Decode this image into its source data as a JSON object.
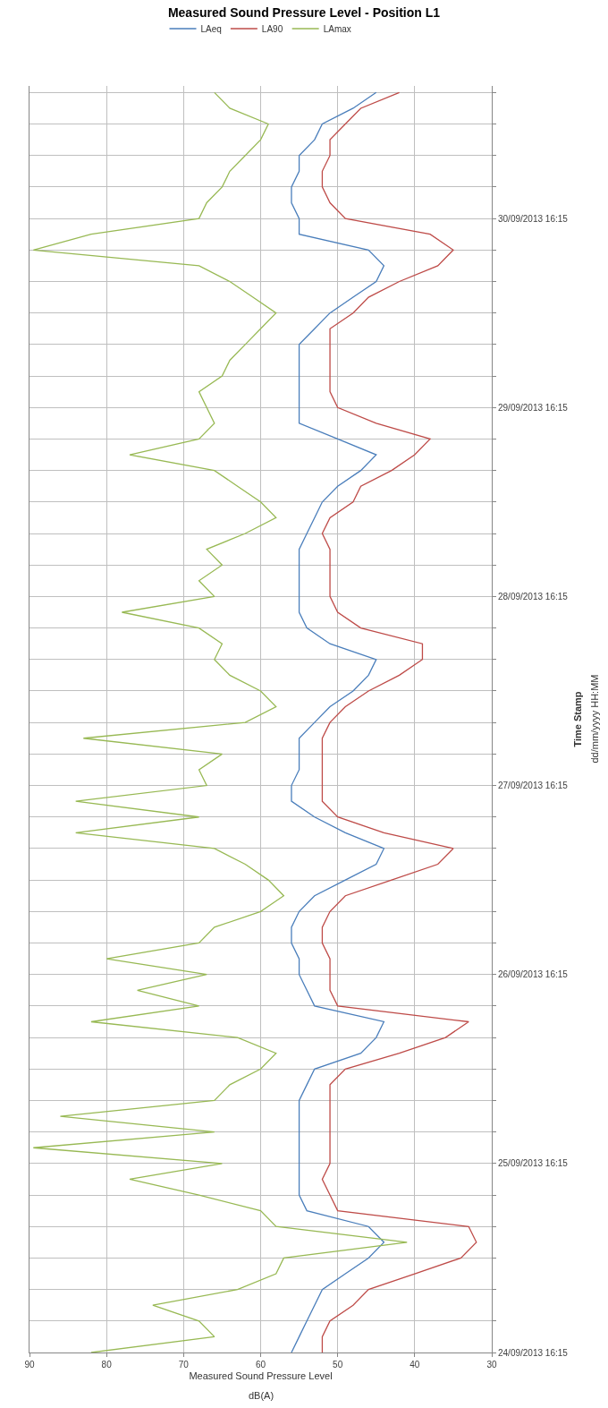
{
  "chart_data": {
    "type": "line",
    "title": "Measured Sound Pressure Level - Position L1",
    "xlabel": "Measured Sound Pressure Level",
    "ylabel": "Time Stamp",
    "annotations": [
      "dd/mm/yyyy HH:MM",
      "dB(A)"
    ],
    "x": [
      "2013-09-24T16:15",
      "2013-09-24T18:15",
      "2013-09-24T20:15",
      "2013-09-24T22:15",
      "2013-09-25T00:15",
      "2013-09-25T02:15",
      "2013-09-25T04:15",
      "2013-09-25T06:15",
      "2013-09-25T08:15",
      "2013-09-25T10:15",
      "2013-09-25T12:15",
      "2013-09-25T14:15",
      "2013-09-25T16:15",
      "2013-09-25T18:15",
      "2013-09-25T20:15",
      "2013-09-25T22:15",
      "2013-09-26T00:15",
      "2013-09-26T02:15",
      "2013-09-26T04:15",
      "2013-09-26T06:15",
      "2013-09-26T08:15",
      "2013-09-26T10:15",
      "2013-09-26T12:15",
      "2013-09-26T14:15",
      "2013-09-26T16:15",
      "2013-09-26T18:15",
      "2013-09-26T20:15",
      "2013-09-26T22:15",
      "2013-09-27T00:15",
      "2013-09-27T02:15",
      "2013-09-27T04:15",
      "2013-09-27T06:15",
      "2013-09-27T08:15",
      "2013-09-27T10:15",
      "2013-09-27T12:15",
      "2013-09-27T14:15",
      "2013-09-27T16:15",
      "2013-09-27T18:15",
      "2013-09-27T20:15",
      "2013-09-27T22:15",
      "2013-09-28T00:15",
      "2013-09-28T02:15",
      "2013-09-28T04:15",
      "2013-09-28T06:15",
      "2013-09-28T08:15",
      "2013-09-28T10:15",
      "2013-09-28T12:15",
      "2013-09-28T14:15",
      "2013-09-28T16:15",
      "2013-09-28T18:15",
      "2013-09-28T20:15",
      "2013-09-28T22:15",
      "2013-09-29T00:15",
      "2013-09-29T02:15",
      "2013-09-29T04:15",
      "2013-09-29T06:15",
      "2013-09-29T08:15",
      "2013-09-29T10:15",
      "2013-09-29T12:15",
      "2013-09-29T14:15",
      "2013-09-29T16:15",
      "2013-09-29T18:15",
      "2013-09-29T20:15",
      "2013-09-29T22:15",
      "2013-09-30T00:15",
      "2013-09-30T02:15",
      "2013-09-30T04:15",
      "2013-09-30T06:15",
      "2013-09-30T08:15",
      "2013-09-30T10:15",
      "2013-09-30T12:15",
      "2013-09-30T14:15",
      "2013-09-30T16:15",
      "2013-09-30T18:15",
      "2013-09-30T20:15",
      "2013-09-30T22:15",
      "2013-10-01T00:15",
      "2013-10-01T02:15",
      "2013-10-01T04:15",
      "2013-10-01T06:15",
      "2013-10-01T08:15"
    ],
    "series": [
      {
        "name": "LAeq",
        "color": "#4a7ebb",
        "values": [
          56,
          55,
          54,
          53,
          52,
          49,
          46,
          44,
          46,
          54,
          55,
          55,
          55,
          55,
          55,
          55,
          55,
          54,
          53,
          47,
          45,
          44,
          53,
          54,
          55,
          55,
          56,
          56,
          55,
          53,
          49,
          45,
          44,
          49,
          53,
          56,
          56,
          55,
          55,
          55,
          53,
          51,
          48,
          46,
          45,
          51,
          54,
          55,
          55,
          55,
          55,
          55,
          54,
          53,
          52,
          50,
          47,
          45,
          50,
          55,
          55,
          55,
          55,
          55,
          55,
          53,
          51,
          48,
          45,
          44,
          46,
          55,
          55,
          56,
          56,
          55,
          55,
          53,
          52,
          48,
          45
        ]
      },
      {
        "name": "LA90",
        "color": "#be4b48",
        "values": [
          52,
          52,
          51,
          48,
          46,
          40,
          34,
          32,
          33,
          50,
          51,
          52,
          51,
          51,
          51,
          51,
          51,
          51,
          49,
          42,
          36,
          33,
          50,
          51,
          51,
          51,
          52,
          52,
          51,
          49,
          43,
          37,
          35,
          44,
          50,
          52,
          52,
          52,
          52,
          52,
          51,
          49,
          46,
          42,
          39,
          39,
          47,
          50,
          51,
          51,
          51,
          51,
          52,
          51,
          48,
          47,
          43,
          40,
          38,
          45,
          50,
          51,
          51,
          51,
          51,
          51,
          48,
          46,
          42,
          37,
          35,
          38,
          49,
          51,
          52,
          52,
          51,
          51,
          49,
          47,
          42
        ]
      },
      {
        "name": "LAmax",
        "color": "#98b954",
        "values": [
          82,
          66,
          68,
          74,
          63,
          58,
          57,
          41,
          58,
          60,
          68,
          77,
          65,
          89.5,
          66,
          86,
          66,
          64,
          60,
          58,
          63,
          82,
          68,
          76,
          67,
          80,
          68,
          66,
          60,
          57,
          59,
          62,
          66,
          84,
          68,
          84,
          67,
          68,
          65,
          83,
          62,
          58,
          60,
          64,
          66,
          65,
          68,
          78,
          66,
          68,
          65,
          67,
          62,
          58,
          60,
          63,
          66,
          77,
          68,
          66,
          67,
          68,
          65,
          64,
          62,
          60,
          58,
          61,
          64,
          68,
          89.5,
          82,
          68,
          67,
          65,
          64,
          62,
          60,
          59,
          64,
          66
        ]
      }
    ],
    "orientation": "horizontal",
    "xlim": [
      90,
      30
    ],
    "xticks": [
      90,
      80,
      70,
      60,
      50,
      40,
      30
    ],
    "ylim": [
      "2013-09-24T16:15",
      "2013-10-01T09:05"
    ],
    "yticks": [
      {
        "value": "2013-09-24T16:15",
        "label": "24/09/2013 16:15"
      },
      {
        "value": "2013-09-24T20:15",
        "label": null
      },
      {
        "value": "2013-09-25T00:15",
        "label": null
      },
      {
        "value": "2013-09-25T04:15",
        "label": null
      },
      {
        "value": "2013-09-25T08:15",
        "label": null
      },
      {
        "value": "2013-09-25T12:15",
        "label": null
      },
      {
        "value": "2013-09-25T16:15",
        "label": "25/09/2013 16:15"
      },
      {
        "value": "2013-09-25T20:15",
        "label": null
      },
      {
        "value": "2013-09-26T00:15",
        "label": null
      },
      {
        "value": "2013-09-26T04:15",
        "label": null
      },
      {
        "value": "2013-09-26T08:15",
        "label": null
      },
      {
        "value": "2013-09-26T12:15",
        "label": null
      },
      {
        "value": "2013-09-26T16:15",
        "label": "26/09/2013 16:15"
      },
      {
        "value": "2013-09-26T20:15",
        "label": null
      },
      {
        "value": "2013-09-27T00:15",
        "label": null
      },
      {
        "value": "2013-09-27T04:15",
        "label": null
      },
      {
        "value": "2013-09-27T08:15",
        "label": null
      },
      {
        "value": "2013-09-27T12:15",
        "label": null
      },
      {
        "value": "2013-09-27T16:15",
        "label": "27/09/2013 16:15"
      },
      {
        "value": "2013-09-27T20:15",
        "label": null
      },
      {
        "value": "2013-09-28T00:15",
        "label": null
      },
      {
        "value": "2013-09-28T04:15",
        "label": null
      },
      {
        "value": "2013-09-28T08:15",
        "label": null
      },
      {
        "value": "2013-09-28T12:15",
        "label": null
      },
      {
        "value": "2013-09-28T16:15",
        "label": "28/09/2013 16:15"
      },
      {
        "value": "2013-09-28T20:15",
        "label": null
      },
      {
        "value": "2013-09-29T00:15",
        "label": null
      },
      {
        "value": "2013-09-29T04:15",
        "label": null
      },
      {
        "value": "2013-09-29T08:15",
        "label": null
      },
      {
        "value": "2013-09-29T12:15",
        "label": null
      },
      {
        "value": "2013-09-29T16:15",
        "label": "29/09/2013 16:15"
      },
      {
        "value": "2013-09-29T20:15",
        "label": null
      },
      {
        "value": "2013-09-30T00:15",
        "label": null
      },
      {
        "value": "2013-09-30T04:15",
        "label": null
      },
      {
        "value": "2013-09-30T08:15",
        "label": null
      },
      {
        "value": "2013-09-30T12:15",
        "label": null
      },
      {
        "value": "2013-09-30T16:15",
        "label": "30/09/2013 16:15"
      },
      {
        "value": "2013-09-30T20:15",
        "label": null
      },
      {
        "value": "2013-10-01T00:15",
        "label": null
      },
      {
        "value": "2013-10-01T04:15",
        "label": null
      },
      {
        "value": "2013-10-01T08:15",
        "label": null
      }
    ],
    "grid": true,
    "legend": "top",
    "marker": "none",
    "line_style": "solid"
  }
}
